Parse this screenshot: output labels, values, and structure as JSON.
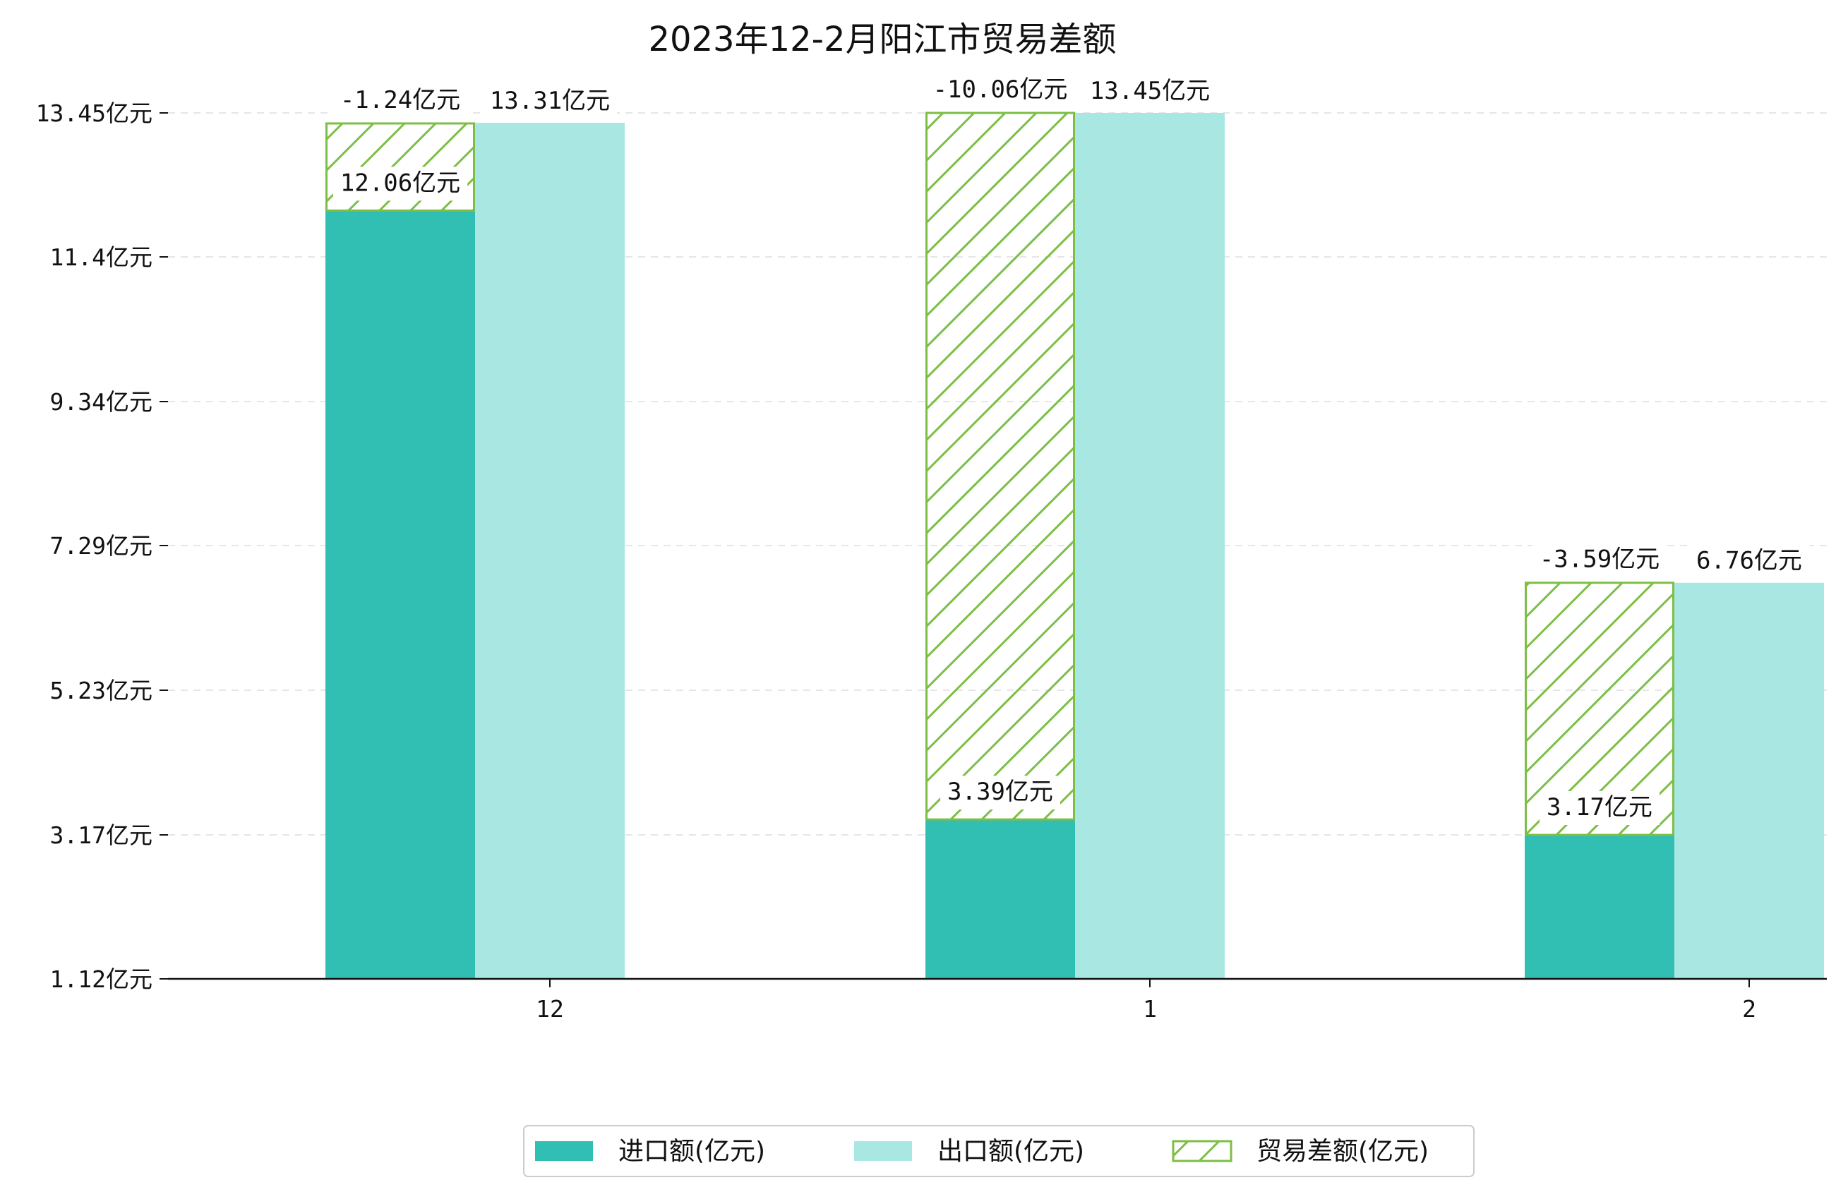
{
  "chart_data": {
    "type": "bar",
    "title": "2023年12-2月阳江市贸易差额",
    "categories": [
      "12",
      "1",
      "2"
    ],
    "unit": "亿元",
    "series": [
      {
        "name": "进口额(亿元)",
        "key": "import",
        "values": [
          12.06,
          3.39,
          3.17
        ],
        "labels": [
          "12.06亿元",
          "3.39亿元",
          "3.17亿元"
        ],
        "color": "#31BFB3"
      },
      {
        "name": "出口额(亿元)",
        "key": "export",
        "values": [
          13.31,
          13.45,
          6.76
        ],
        "labels": [
          "13.31亿元",
          "13.45亿元",
          "6.76亿元"
        ],
        "color": "#A9E8E2"
      },
      {
        "name": "贸易差额(亿元)",
        "key": "balance",
        "values": [
          -1.24,
          -10.06,
          -3.59
        ],
        "labels": [
          "-1.24亿元",
          "-10.06亿元",
          "-3.59亿元"
        ],
        "color": "#7DBE45",
        "pattern": "hatch"
      }
    ],
    "yticks": [
      1.12,
      3.17,
      5.23,
      7.29,
      9.34,
      11.4,
      13.45
    ],
    "ytick_labels": [
      "1.12亿元",
      "3.17亿元",
      "5.23亿元",
      "7.29亿元",
      "9.34亿元",
      "11.4亿元",
      "13.45亿元"
    ],
    "ylim": [
      1.12,
      13.45
    ],
    "xlabel": "",
    "ylabel": "",
    "grid": "horizontal dashed",
    "legend_position": "bottom-center"
  }
}
